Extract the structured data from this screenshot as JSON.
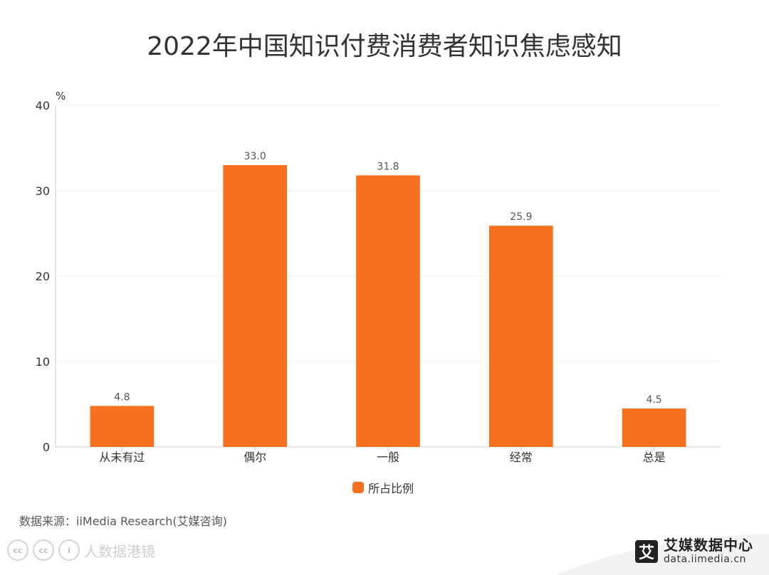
{
  "title": "2022年中国知识付费消费者知识焦虑感知",
  "source": "数据来源：iiMedia Research(艾媒咨询)",
  "watermark": {
    "text": "人数据港镜",
    "badges": [
      "cc",
      "cc",
      "i"
    ]
  },
  "brand": {
    "logo_char": "艾",
    "name": "艾媒数据中心",
    "url": "data.iimedia.cn"
  },
  "colors": {
    "bar": "#F7701E",
    "grid": "#EEEEEE",
    "axis": "#CCCCCC",
    "text": "#333333"
  },
  "chart_data": {
    "type": "bar",
    "title": "2022年中国知识付费消费者知识焦虑感知",
    "ylabel": "%",
    "xlabel": "",
    "categories": [
      "从未有过",
      "偶尔",
      "一般",
      "经常",
      "总是"
    ],
    "series": [
      {
        "name": "所占比例",
        "values": [
          4.8,
          33.0,
          31.8,
          25.9,
          4.5
        ]
      }
    ],
    "value_labels": [
      "4.8",
      "33.0",
      "31.8",
      "25.9",
      "4.5"
    ],
    "ylim": [
      0,
      40
    ],
    "yticks": [
      "0",
      "10",
      "20",
      "30",
      "40"
    ],
    "grid": true,
    "legend": "bottom-center"
  }
}
